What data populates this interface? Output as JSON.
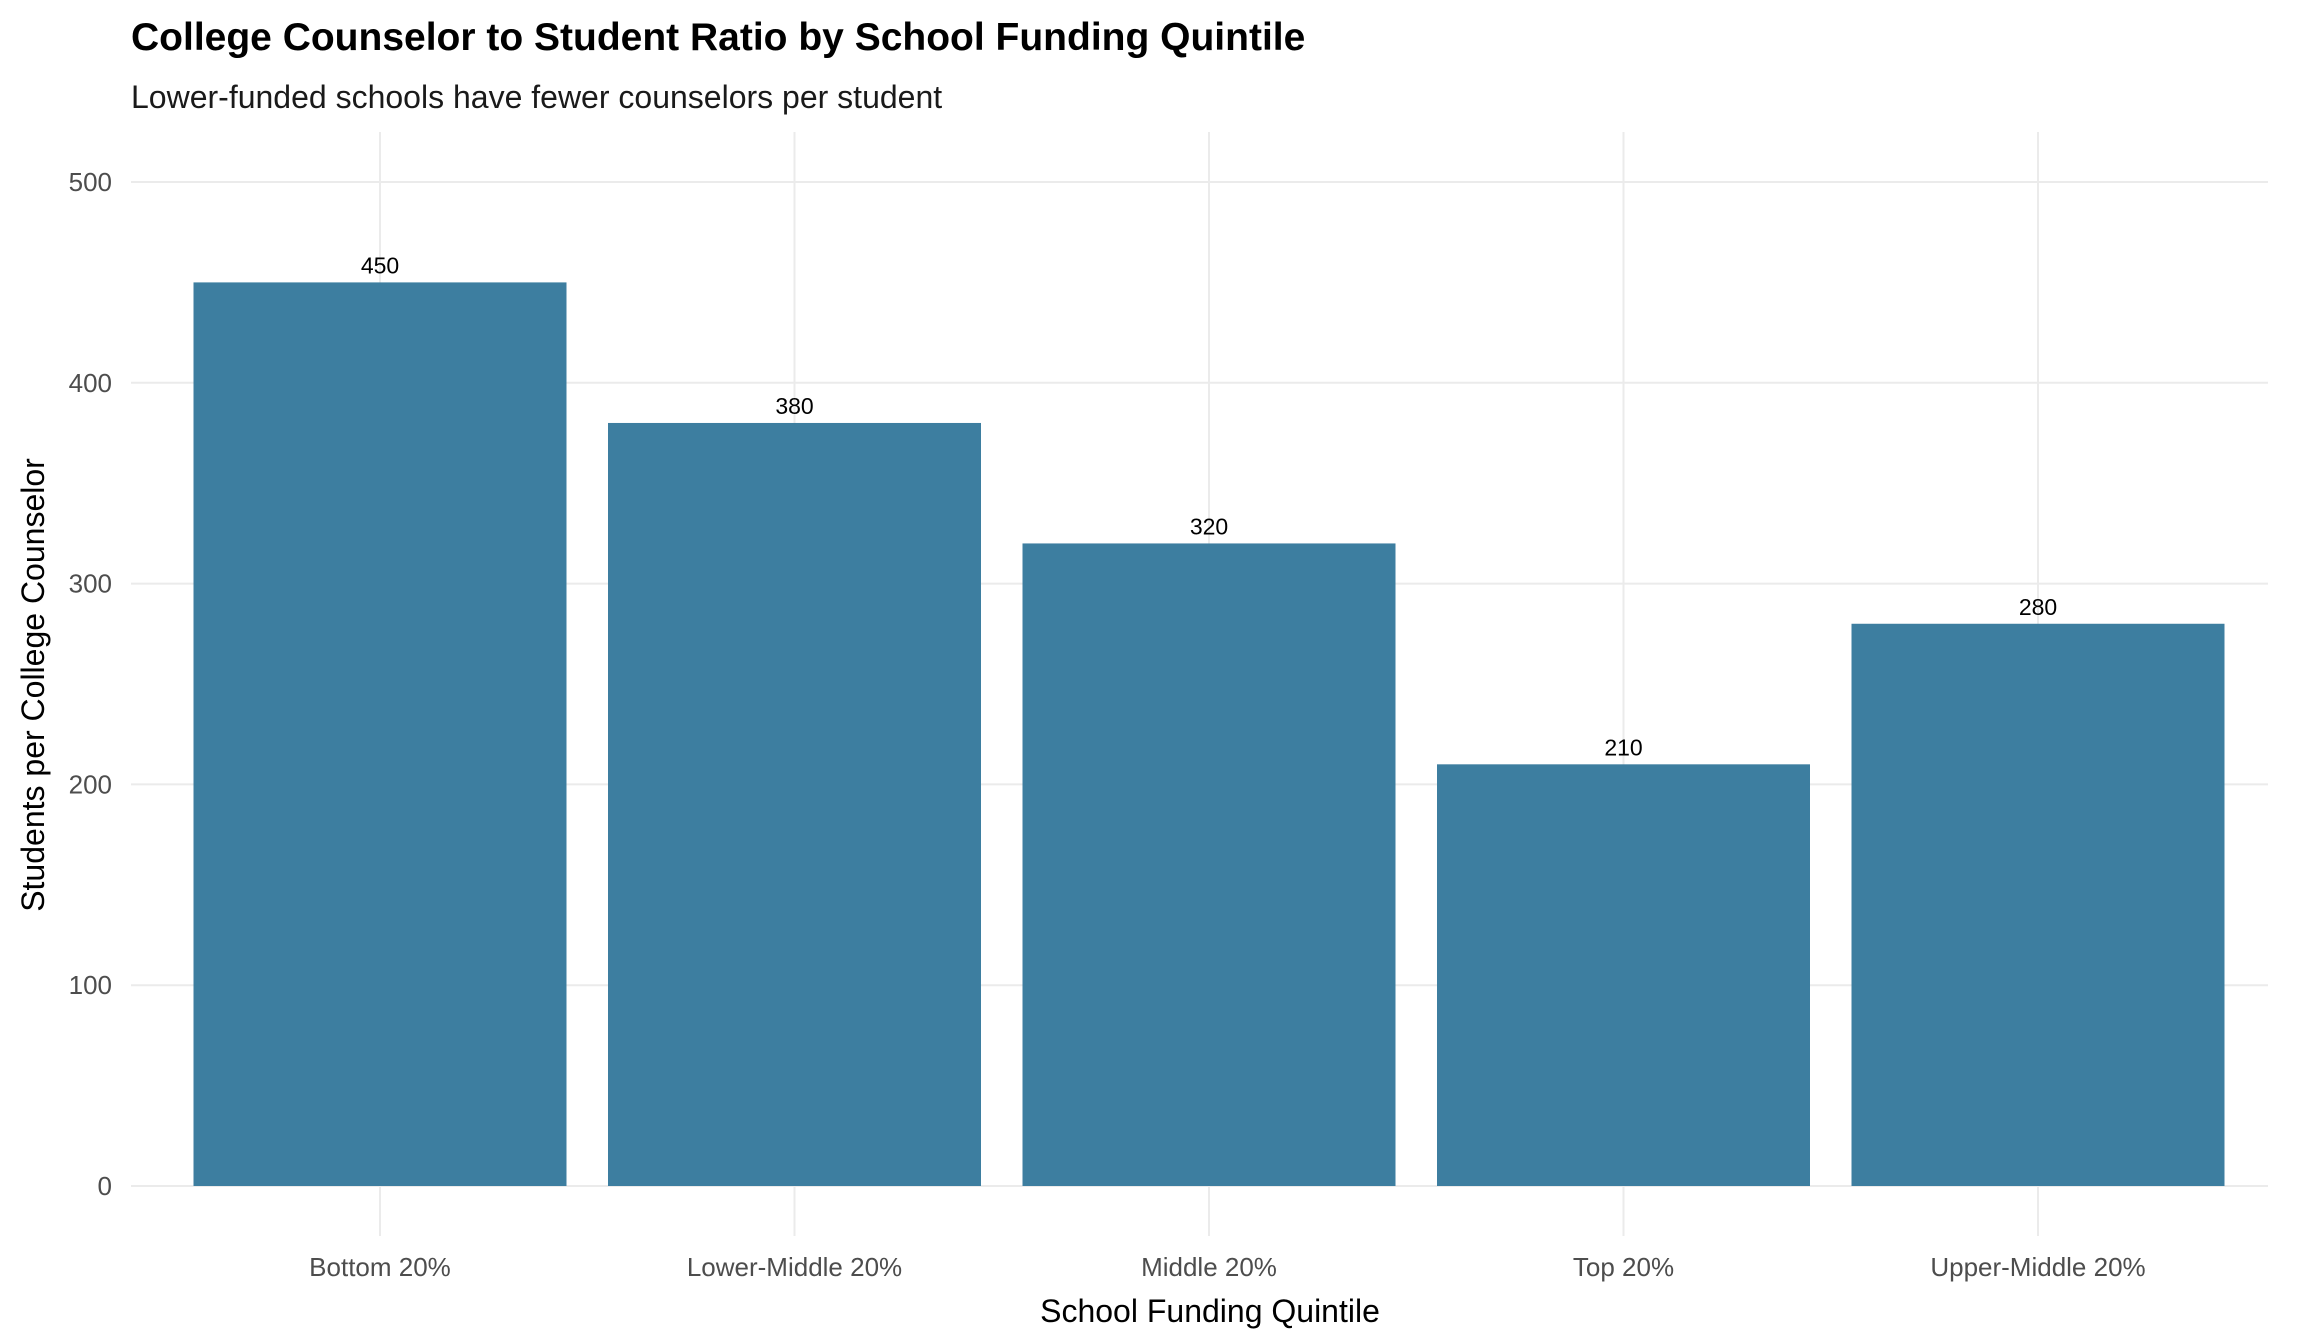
{
  "chart_data": {
    "type": "bar",
    "title": "College Counselor to Student Ratio by School Funding Quintile",
    "subtitle": "Lower-funded schools have fewer counselors per student",
    "xlabel": "School Funding Quintile",
    "ylabel": "Students per College Counselor",
    "categories": [
      "Bottom 20%",
      "Lower-Middle 20%",
      "Middle 20%",
      "Top 20%",
      "Upper-Middle 20%"
    ],
    "values": [
      450,
      380,
      320,
      210,
      280
    ],
    "data_labels": [
      "450",
      "380",
      "320",
      "210",
      "280"
    ],
    "ylim": [
      0,
      525
    ],
    "yticks": [
      0,
      100,
      200,
      300,
      400,
      500
    ],
    "ytick_labels": [
      "0",
      "100",
      "200",
      "300",
      "400",
      "500"
    ],
    "grid": true,
    "legend": "none",
    "bar_color": "#3d7ea0"
  }
}
